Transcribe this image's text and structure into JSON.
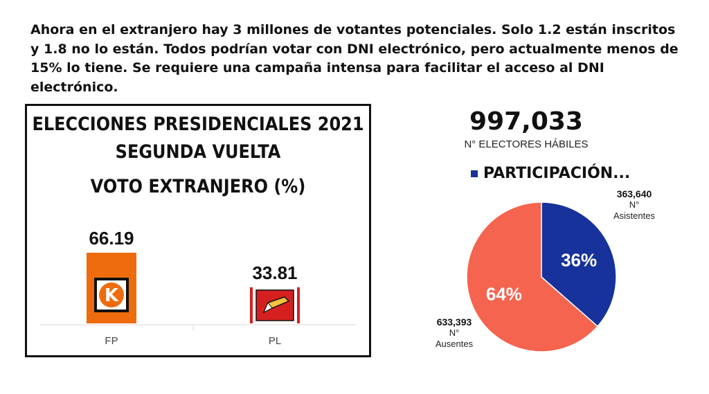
{
  "intro_text": "Ahora en el extranjero hay 3 millones de votantes potenciales. Solo 1.2 están inscritos y 1.8 no lo están. Todos podrían votar con DNI electrónico, pero actualmente menos de 15% lo tiene. Se requiere una campaña intensa para facilitar el acceso al DNI electrónico.",
  "colors": {
    "fp_orange": "#ee6c0d",
    "pl_red": "#d62020",
    "asistentes_blue": "#17329a",
    "ausentes_salmon": "#f5644e"
  },
  "icons": {
    "fp_logo": "k-logo-icon",
    "pl_logo": "pencil-logo-icon"
  },
  "chart_data": [
    {
      "type": "bar",
      "title": "ELECCIONES PRESIDENCIALES 2021",
      "subtitle": "SEGUNDA VUELTA",
      "subtitle2": "VOTO EXTRANJERO (%)",
      "categories": [
        "FP",
        "PL"
      ],
      "values": [
        66.19,
        33.81
      ],
      "value_labels": [
        "66.19",
        "33.81"
      ],
      "ylim": [
        0,
        66.19
      ],
      "grid": false
    },
    {
      "type": "pie",
      "header_value": "997,033",
      "header_label": "N° ELECTORES HÁBILES",
      "legend": "PARTICIPACIÓN...",
      "legend_position": "top",
      "slices": [
        {
          "value": 363640,
          "value_label": "363,640",
          "label": "N° Asistentes",
          "label_line1": "N°",
          "label_line2": "Asistentes",
          "percent": "36%",
          "color": "#17329a"
        },
        {
          "value": 633393,
          "value_label": "633,393",
          "label": "N° Ausentes",
          "label_line1": "N°",
          "label_line2": "Ausentes",
          "percent": "64%",
          "color": "#f5644e"
        }
      ]
    }
  ]
}
